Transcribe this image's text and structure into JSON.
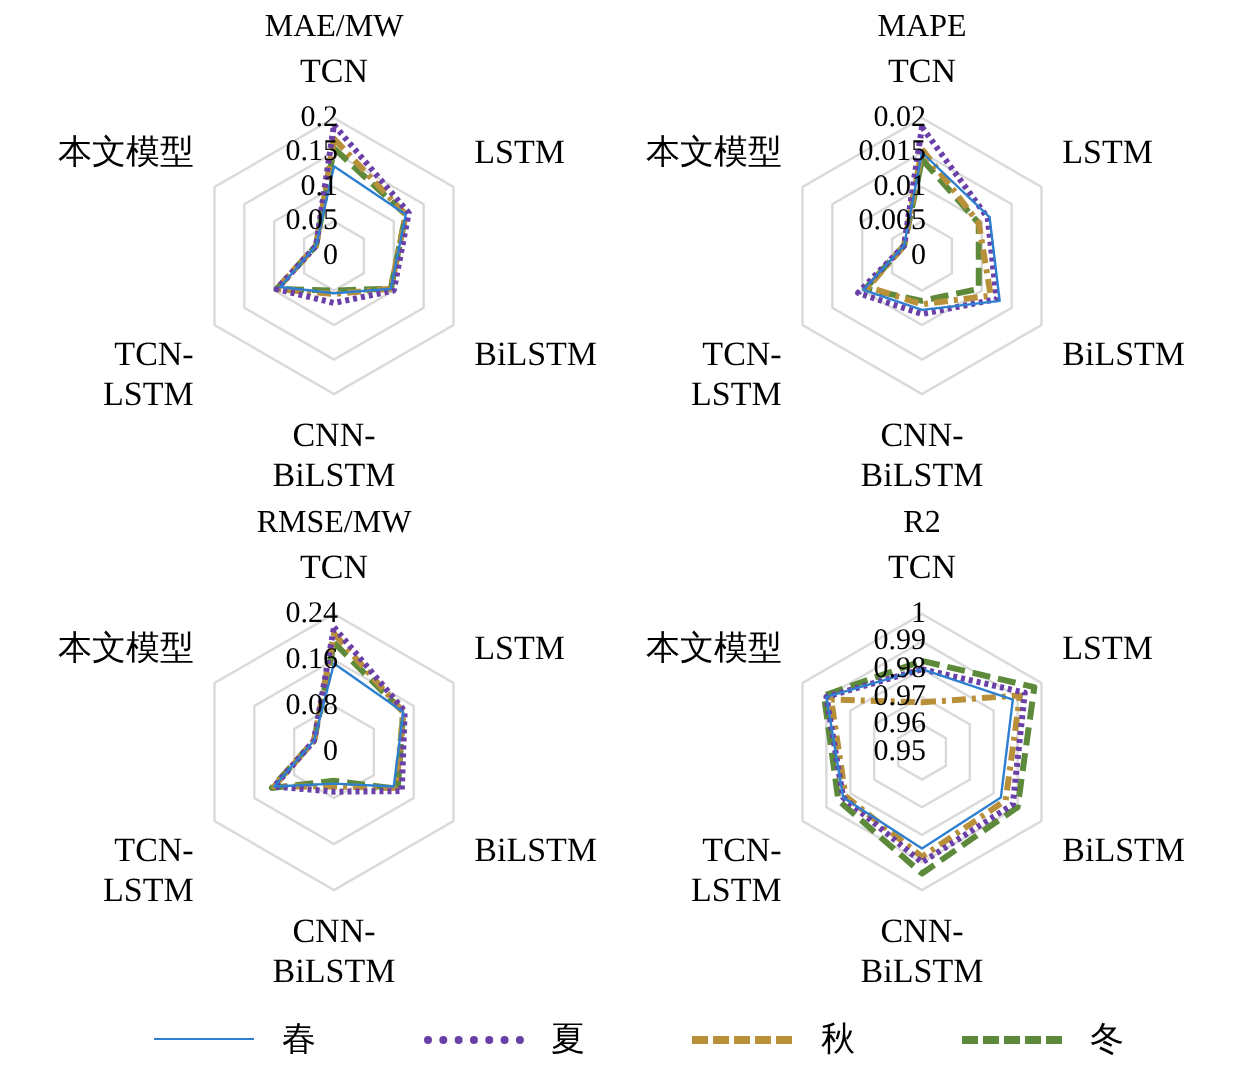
{
  "chart_data": [
    {
      "type": "radar",
      "title": "MAE/MW",
      "categories": [
        "TCN",
        "LSTM",
        "BiLSTM",
        "CNN-BiLSTM",
        "TCN-LSTM",
        "本文模型"
      ],
      "ylim": [
        0,
        0.2
      ],
      "yticks": [
        0,
        0.05,
        0.1,
        0.15,
        0.2
      ],
      "grid": true,
      "legend": "bottom",
      "marker": "none",
      "series": [
        {
          "name": "春",
          "color": "#2e7fd0",
          "line_style": "solid",
          "values": [
            0.13,
            0.12,
            0.095,
            0.054,
            0.09,
            0.03
          ]
        },
        {
          "name": "夏",
          "color": "#6a3fa8",
          "line_style": "dotted",
          "values": [
            0.19,
            0.125,
            0.1,
            0.068,
            0.096,
            0.03
          ]
        },
        {
          "name": "秋",
          "color": "#b8903a",
          "line_style": "dashdot",
          "values": [
            0.17,
            0.12,
            0.095,
            0.055,
            0.096,
            0.03
          ]
        },
        {
          "name": "冬",
          "color": "#5d8a3a",
          "line_style": "dashed",
          "values": [
            0.156,
            0.12,
            0.095,
            0.05,
            0.096,
            0.03
          ]
        }
      ]
    },
    {
      "type": "radar",
      "title": "MAPE",
      "categories": [
        "TCN",
        "LSTM",
        "BiLSTM",
        "CNN-BiLSTM",
        "TCN-LSTM",
        "本文模型"
      ],
      "ylim": [
        0,
        0.02
      ],
      "yticks": [
        0,
        0.005,
        0.01,
        0.015,
        0.02
      ],
      "grid": true,
      "marker": "none",
      "series": [
        {
          "color": "#2e7fd0",
          "line_style": "solid",
          "values": [
            0.015,
            0.0113,
            0.013,
            0.0078,
            0.0098,
            0.003
          ]
        },
        {
          "color": "#6a3fa8",
          "line_style": "dotted",
          "values": [
            0.0187,
            0.011,
            0.0125,
            0.0084,
            0.0107,
            0.003
          ]
        },
        {
          "color": "#b8903a",
          "line_style": "dashdot",
          "values": [
            0.0155,
            0.0095,
            0.0115,
            0.007,
            0.009,
            0.003
          ]
        },
        {
          "color": "#5d8a3a",
          "line_style": "dashed",
          "values": [
            0.014,
            0.0095,
            0.0095,
            0.0065,
            0.0095,
            0.003
          ]
        }
      ]
    },
    {
      "type": "radar",
      "title": "RMSE/MW",
      "categories": [
        "TCN",
        "LSTM",
        "BiLSTM",
        "CNN-BiLSTM",
        "TCN-LSTM",
        "本文模型"
      ],
      "ylim": [
        0,
        0.24
      ],
      "yticks": [
        0,
        0.08,
        0.16,
        0.24
      ],
      "grid": true,
      "marker": "none",
      "series": [
        {
          "color": "#2e7fd0",
          "line_style": "solid",
          "values": [
            0.154,
            0.139,
            0.12,
            0.055,
            0.12,
            0.04
          ]
        },
        {
          "color": "#6a3fa8",
          "line_style": "dotted",
          "values": [
            0.217,
            0.142,
            0.136,
            0.069,
            0.12,
            0.04
          ]
        },
        {
          "color": "#b8903a",
          "line_style": "dashdot",
          "values": [
            0.206,
            0.139,
            0.125,
            0.06,
            0.12,
            0.04
          ]
        },
        {
          "color": "#5d8a3a",
          "line_style": "dashed",
          "values": [
            0.19,
            0.139,
            0.128,
            0.05,
            0.125,
            0.04
          ]
        }
      ]
    },
    {
      "type": "radar",
      "title": "R2",
      "categories": [
        "TCN",
        "LSTM",
        "BiLSTM",
        "CNN-BiLSTM",
        "TCN-LSTM",
        "本文模型"
      ],
      "ylim": [
        0.95,
        1
      ],
      "yticks": [
        0.95,
        0.96,
        0.97,
        0.98,
        0.99,
        1
      ],
      "grid": true,
      "marker": "none",
      "series": [
        {
          "color": "#2e7fd0",
          "line_style": "solid",
          "values": [
            0.98,
            0.988,
            0.983,
            0.985,
            0.983,
            0.99
          ]
        },
        {
          "color": "#6a3fa8",
          "line_style": "dotted",
          "values": [
            0.98,
            0.993,
            0.988,
            0.99,
            0.983,
            0.99
          ]
        },
        {
          "color": "#b8903a",
          "line_style": "dashdot",
          "values": [
            0.968,
            0.991,
            0.985,
            0.988,
            0.982,
            0.988
          ]
        },
        {
          "color": "#5d8a3a",
          "line_style": "dashed",
          "values": [
            0.983,
            0.997,
            0.99,
            0.994,
            0.985,
            0.991
          ]
        }
      ]
    }
  ]
}
